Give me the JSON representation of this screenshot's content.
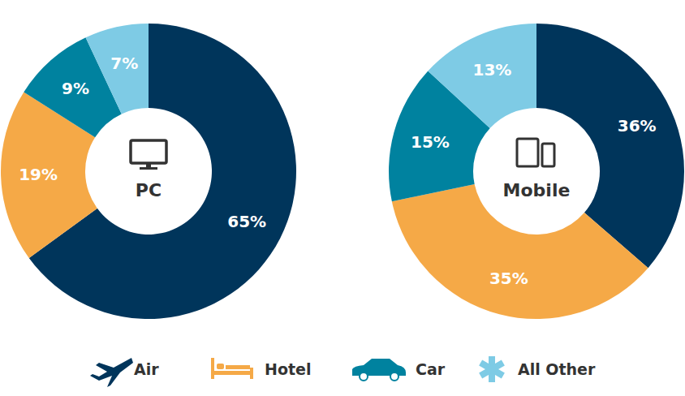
{
  "chart_data": [
    {
      "type": "donut",
      "title": "PC",
      "categories": [
        "Air",
        "Hotel",
        "Car",
        "All Other"
      ],
      "values": [
        65,
        19,
        9,
        7
      ],
      "value_labels": [
        "65%",
        "19%",
        "9%",
        "7%"
      ],
      "colors": [
        "#00355b",
        "#f5a947",
        "#00829f",
        "#7ecbe5"
      ],
      "data_labels": true,
      "legend": "bottom"
    },
    {
      "type": "donut",
      "title": "Mobile",
      "categories": [
        "Air",
        "Hotel",
        "Car",
        "All Other"
      ],
      "values": [
        36,
        35,
        15,
        13
      ],
      "value_labels": [
        "36%",
        "35%",
        "15%",
        "13%"
      ],
      "colors": [
        "#00355b",
        "#f5a947",
        "#00829f",
        "#7ecbe5"
      ],
      "data_labels": true,
      "legend": "bottom"
    }
  ]
}
